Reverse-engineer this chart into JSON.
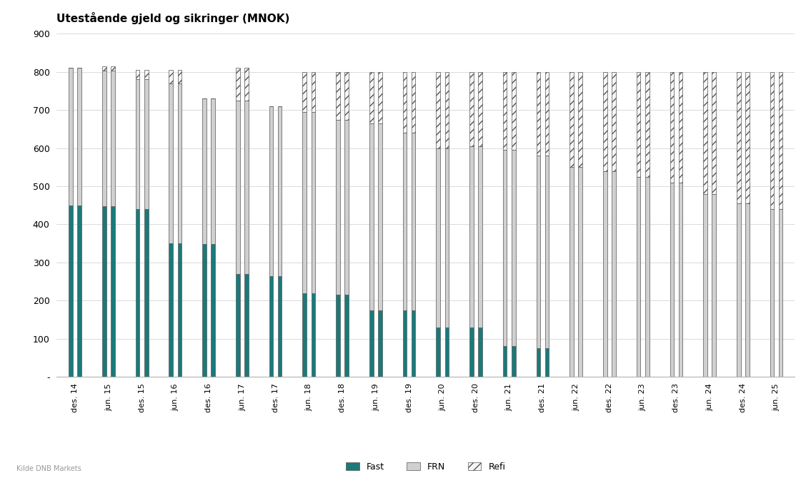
{
  "title": "Utestående gjeld og sikringer (MNOK)",
  "source": "Kilde DNB Markets",
  "categories": [
    "des. 14",
    "jun. 15",
    "des. 15",
    "jun. 16",
    "des. 16",
    "jun. 17",
    "des. 17",
    "jun. 18",
    "des. 18",
    "jun. 19",
    "des. 19",
    "jun. 20",
    "des. 20",
    "jun. 21",
    "des. 21",
    "jun. 22",
    "des. 22",
    "jun. 23",
    "des. 23",
    "jun. 24",
    "des. 24",
    "jun. 25"
  ],
  "fast_left": [
    450,
    447,
    440,
    350,
    348,
    270,
    265,
    220,
    215,
    175,
    175,
    130,
    130,
    80,
    75,
    0,
    0,
    0,
    0,
    0,
    0,
    0
  ],
  "fast_right": [
    450,
    447,
    440,
    350,
    348,
    270,
    265,
    220,
    215,
    175,
    175,
    130,
    130,
    80,
    75,
    0,
    0,
    0,
    0,
    0,
    0,
    0
  ],
  "frn_left": [
    360,
    357,
    340,
    420,
    382,
    455,
    445,
    475,
    460,
    490,
    465,
    470,
    475,
    515,
    505,
    550,
    540,
    525,
    510,
    480,
    455,
    440
  ],
  "frn_right": [
    360,
    357,
    340,
    420,
    382,
    455,
    445,
    475,
    460,
    490,
    465,
    470,
    475,
    515,
    505,
    550,
    540,
    525,
    510,
    480,
    455,
    440
  ],
  "refi_left": [
    0,
    10,
    25,
    35,
    0,
    85,
    0,
    105,
    125,
    135,
    160,
    200,
    195,
    205,
    220,
    250,
    260,
    275,
    290,
    320,
    345,
    360
  ],
  "refi_right": [
    0,
    10,
    25,
    35,
    0,
    85,
    0,
    105,
    125,
    135,
    160,
    200,
    195,
    205,
    220,
    250,
    260,
    275,
    290,
    320,
    345,
    360
  ],
  "ylim": [
    0,
    900
  ],
  "yticks": [
    0,
    100,
    200,
    300,
    400,
    500,
    600,
    700,
    800,
    900
  ],
  "ytick_labels": [
    "-",
    "100",
    "200",
    "300",
    "400",
    "500",
    "600",
    "700",
    "800",
    "900"
  ],
  "fast_color": "#1a7a7a",
  "frn_color": "#d0d0d0",
  "refi_color": "#f5f5f5",
  "refi_hatch": "///",
  "background_color": "#ffffff",
  "legend_fast": "Fast",
  "legend_frn": "FRN",
  "legend_refi": "Refi"
}
